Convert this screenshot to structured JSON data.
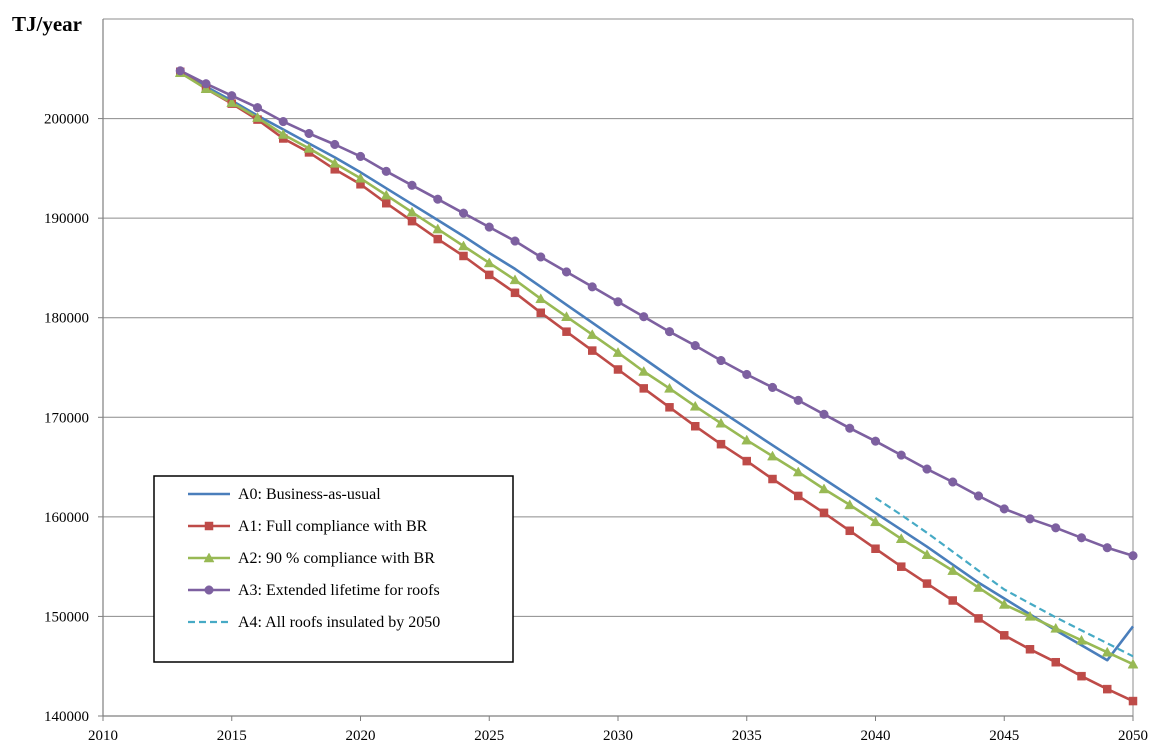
{
  "chart_data": {
    "type": "line",
    "ylabel": "TJ/year",
    "xlabel": "",
    "xlim": [
      2010,
      2050
    ],
    "ylim": [
      140000,
      210000
    ],
    "x_ticks": [
      2010,
      2015,
      2020,
      2025,
      2030,
      2035,
      2040,
      2045,
      2050
    ],
    "y_ticks": [
      140000,
      150000,
      160000,
      170000,
      180000,
      190000,
      200000
    ],
    "grid": "horizontal",
    "legend_position": "bottom-left",
    "x": [
      2013,
      2014,
      2015,
      2016,
      2017,
      2018,
      2019,
      2020,
      2021,
      2022,
      2023,
      2024,
      2025,
      2026,
      2027,
      2028,
      2029,
      2030,
      2031,
      2032,
      2033,
      2034,
      2035,
      2036,
      2037,
      2038,
      2039,
      2040,
      2041,
      2042,
      2043,
      2044,
      2045,
      2046,
      2047,
      2048,
      2049,
      2050
    ],
    "series": [
      {
        "name": "A0: Business-as-usual",
        "color": "#4a7ebb",
        "marker": "none",
        "dash": "solid",
        "values": [
          204800,
          203200,
          201800,
          200300,
          198900,
          197500,
          196100,
          194600,
          193000,
          191400,
          189800,
          188200,
          186500,
          184900,
          183100,
          181300,
          179500,
          177700,
          175900,
          174100,
          172300,
          170600,
          168900,
          167200,
          165500,
          163800,
          162100,
          160400,
          158700,
          157000,
          155200,
          153400,
          151800,
          150200,
          148600,
          147100,
          145600,
          149000
        ]
      },
      {
        "name": "A1: Full compliance with BR",
        "color": "#be4b48",
        "marker": "square",
        "dash": "solid",
        "values": [
          204700,
          203000,
          201500,
          199900,
          198000,
          196600,
          194900,
          193400,
          191500,
          189700,
          187900,
          186200,
          184300,
          182500,
          180500,
          178600,
          176700,
          174800,
          172900,
          171000,
          169100,
          167300,
          165600,
          163800,
          162100,
          160400,
          158600,
          156800,
          155000,
          153300,
          151600,
          149800,
          148100,
          146700,
          145400,
          144000,
          142700,
          141500
        ]
      },
      {
        "name": "A2: 90 % compliance with BR",
        "color": "#98b954",
        "marker": "triangle",
        "dash": "solid",
        "values": [
          204600,
          203000,
          201600,
          200100,
          198400,
          197000,
          195500,
          194000,
          192300,
          190600,
          188900,
          187200,
          185500,
          183800,
          181900,
          180100,
          178300,
          176500,
          174600,
          172900,
          171100,
          169400,
          167700,
          166100,
          164500,
          162800,
          161200,
          159500,
          157800,
          156200,
          154600,
          152900,
          151200,
          150000,
          148800,
          147600,
          146400,
          145200
        ]
      },
      {
        "name": "A3: Extended lifetime for roofs",
        "color": "#7d60a0",
        "marker": "circle",
        "dash": "solid",
        "values": [
          204800,
          203500,
          202300,
          201100,
          199700,
          198500,
          197400,
          196200,
          194700,
          193300,
          191900,
          190500,
          189100,
          187700,
          186100,
          184600,
          183100,
          181600,
          180100,
          178600,
          177200,
          175700,
          174300,
          173000,
          171700,
          170300,
          168900,
          167600,
          166200,
          164800,
          163500,
          162100,
          160800,
          159800,
          158900,
          157900,
          156900,
          156100
        ]
      },
      {
        "name": "A4: All roofs insulated by 2050",
        "color": "#46aac5",
        "marker": "none",
        "dash": "dashed",
        "x": [
          2040,
          2041,
          2042,
          2043,
          2044,
          2045,
          2046,
          2047,
          2048,
          2049,
          2050
        ],
        "values": [
          161900,
          160200,
          158400,
          156500,
          154600,
          152700,
          151300,
          149900,
          148600,
          147300,
          146000
        ]
      }
    ]
  }
}
